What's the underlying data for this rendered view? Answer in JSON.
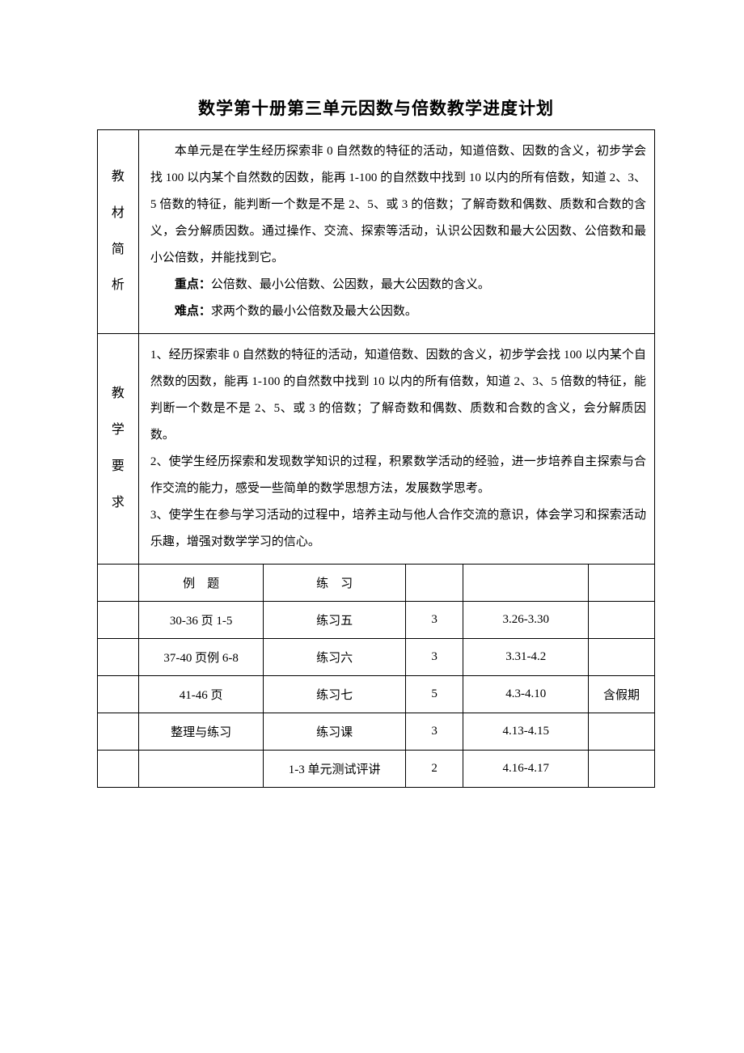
{
  "title": "数学第十册第三单元因数与倍数教学进度计划",
  "sections": {
    "analysis": {
      "label_chars": [
        "教",
        "材",
        "简",
        "析"
      ],
      "para1": "本单元是在学生经历探索非 0 自然数的特征的活动，知道倍数、因数的含义，初步学会找 100 以内某个自然数的因数，能再 1-100 的自然数中找到 10 以内的所有倍数，知道 2、3、5 倍数的特征，能判断一个数是不是 2、5、或 3 的倍数；了解奇数和偶数、质数和合数的含义，会分解质因数。通过操作、交流、探索等活动，认识公因数和最大公因数、公倍数和最小公倍数，并能找到它。",
      "point_label": "重点：",
      "point_text": "公倍数、最小公倍数、公因数，最大公因数的含义。",
      "diff_label": "难点：",
      "diff_text": "求两个数的最小公倍数及最大公因数。"
    },
    "requirements": {
      "label_chars": [
        "教",
        "学",
        "要",
        "求"
      ],
      "lines": [
        "1、经历探索非 0 自然数的特征的活动，知道倍数、因数的含义，初步学会找 100 以内某个自然数的因数，能再 1-100 的自然数中找到 10 以内的所有倍数，知道 2、3、5 倍数的特征，能判断一个数是不是 2、5、或 3 的倍数；了解奇数和偶数、质数和合数的含义，会分解质因数。",
        "2、使学生经历探索和发现数学知识的过程，积累数学活动的经验，进一步培养自主探索与合作交流的能力，感受一些简单的数学思想方法，发展数学思考。",
        "3、使学生在参与学习活动的过程中，培养主动与他人合作交流的意识，体会学习和探索活动乐趣，增强对数学学习的信心。"
      ]
    }
  },
  "schedule": {
    "headers": [
      "",
      "例　题",
      "练　习",
      "",
      "",
      ""
    ],
    "rows": [
      [
        "",
        "30-36 页 1-5",
        "练习五",
        "3",
        "3.26-3.30",
        ""
      ],
      [
        "",
        "37-40 页例 6-8",
        "练习六",
        "3",
        "3.31-4.2",
        ""
      ],
      [
        "",
        "41-46 页",
        "练习七",
        "5",
        "4.3-4.10",
        "含假期"
      ],
      [
        "",
        "整理与练习",
        "练习课",
        "3",
        "4.13-4.15",
        ""
      ],
      [
        "",
        "",
        "1-3 单元测试评讲",
        "2",
        "4.16-4.17",
        ""
      ]
    ]
  }
}
